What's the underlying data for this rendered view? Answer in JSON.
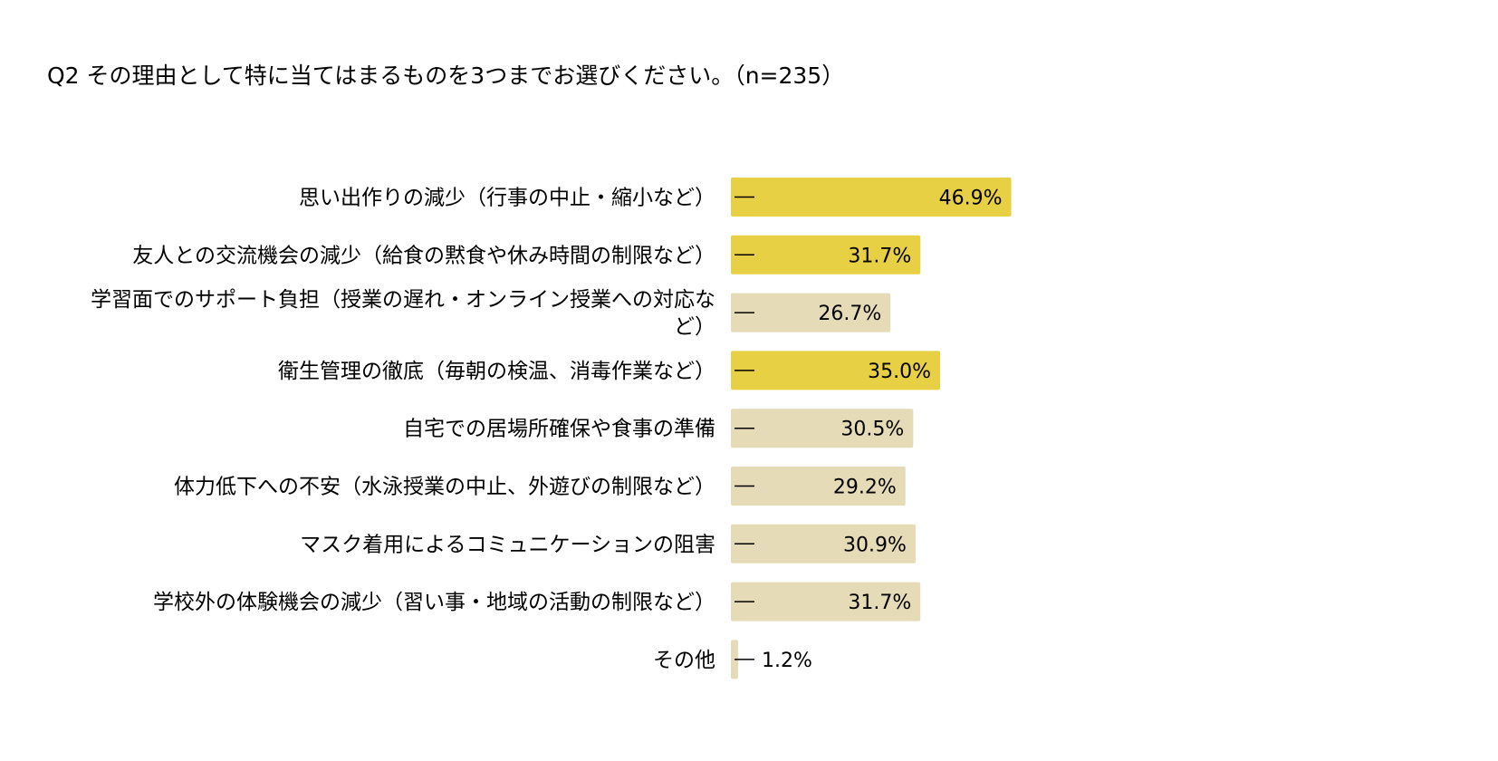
{
  "chart_data": {
    "type": "bar",
    "orientation": "horizontal",
    "title": "Q2 その理由として特に当てはまるものを3つまでお選びください。（n=235）",
    "categories": [
      "思い出作りの減少（行事の中止・縮小など）",
      "友人との交流機会の減少（給食の黙食や休み時間の制限など）",
      "学習面でのサポート負担（授業の遅れ・オンライン授業への対応など）",
      "衛生管理の徹底（毎朝の検温、消毒作業など）",
      "自宅での居場所確保や食事の準備",
      "体力低下への不安（水泳授業の中止、外遊びの制限など）",
      "マスク着用によるコミュニケーションの阻害",
      "学校外の体験機会の減少（習い事・地域の活動の制限など）",
      "その他"
    ],
    "values": [
      46.9,
      31.7,
      26.7,
      35.0,
      30.5,
      29.2,
      30.9,
      31.7,
      1.2
    ],
    "value_labels": [
      "46.9%",
      "31.7%",
      "26.7%",
      "35.0%",
      "30.5%",
      "29.2%",
      "30.9%",
      "31.7%",
      "1.2%"
    ],
    "highlight": [
      true,
      true,
      false,
      true,
      false,
      false,
      false,
      false,
      false
    ],
    "label_lines": [
      [
        "思い出作りの減少（行事の中止・縮小など）"
      ],
      [
        "友人との交流機会の減少（給食の黙食や休み時間の制限など）"
      ],
      [
        "学習面でのサポート負担（授業の遅れ・オンライン授業への対応な",
        "ど）"
      ],
      [
        "衛生管理の徹底（毎朝の検温、消毒作業など）"
      ],
      [
        "自宅での居場所確保や食事の準備"
      ],
      [
        "体力低下への不安（水泳授業の中止、外遊びの制限など）"
      ],
      [
        "マスク着用によるコミュニケーションの阻害"
      ],
      [
        "学校外の体験機会の減少（習い事・地域の活動の制限など）"
      ],
      [
        "その他"
      ]
    ],
    "xlim": [
      0,
      50
    ],
    "grid": false,
    "legend": "none",
    "colors": {
      "highlight": "#e8d044",
      "normal": "#e5dbb6",
      "text": "#000000"
    }
  }
}
